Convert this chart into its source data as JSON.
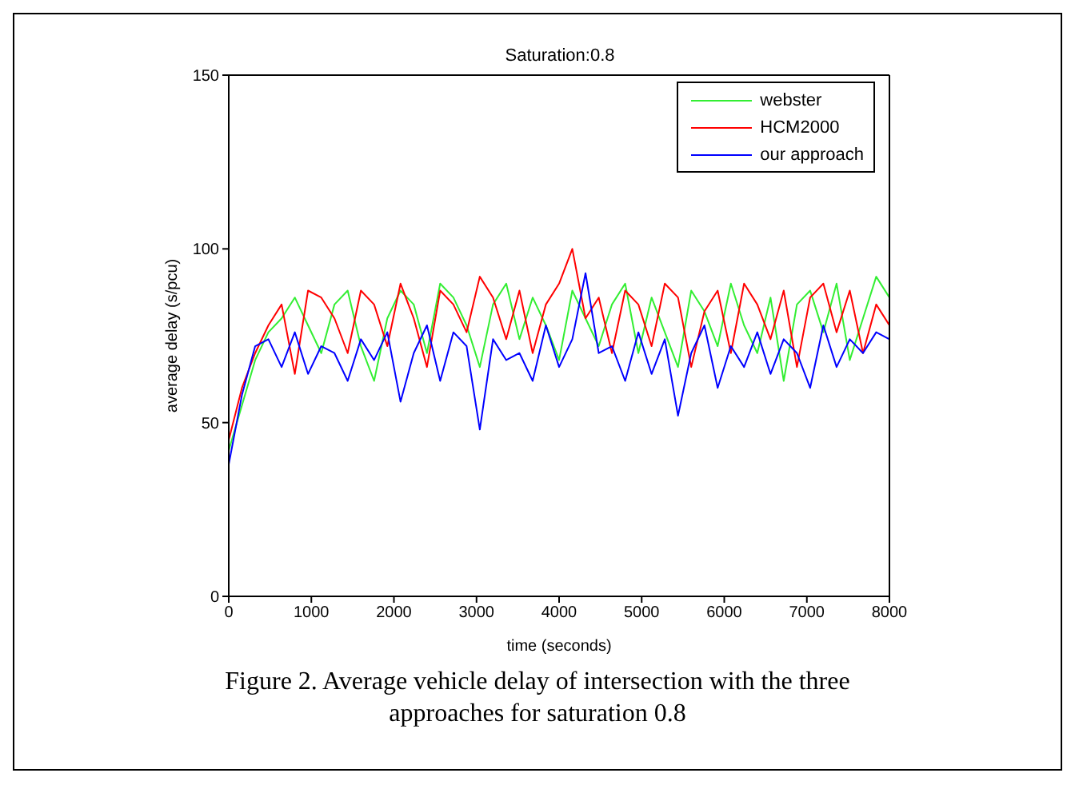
{
  "chart_data": {
    "type": "line",
    "title": "Saturation:0.8",
    "xlabel": "time (seconds)",
    "ylabel": "average delay (s/pcu)",
    "annotations": [
      "Figure 2.  Average vehicle delay of intersection with the three approaches for saturation 0.8"
    ],
    "x": [
      0,
      160,
      320,
      480,
      640,
      800,
      960,
      1120,
      1280,
      1440,
      1600,
      1760,
      1920,
      2080,
      2240,
      2400,
      2560,
      2720,
      2880,
      3040,
      3200,
      3360,
      3520,
      3680,
      3840,
      4000,
      4160,
      4320,
      4480,
      4640,
      4800,
      4960,
      5120,
      5280,
      5440,
      5600,
      5760,
      5920,
      6080,
      6240,
      6400,
      6560,
      6720,
      6880,
      7040,
      7200,
      7360,
      7520,
      7680,
      7840,
      8000
    ],
    "series": [
      {
        "name": "webster",
        "color": "#33ee33",
        "values": [
          42,
          55,
          68,
          76,
          80,
          86,
          78,
          70,
          84,
          88,
          72,
          62,
          80,
          88,
          84,
          70,
          90,
          86,
          78,
          66,
          84,
          90,
          74,
          86,
          78,
          68,
          88,
          80,
          72,
          84,
          90,
          70,
          86,
          76,
          66,
          88,
          82,
          72,
          90,
          78,
          70,
          86,
          62,
          84,
          88,
          76,
          90,
          68,
          80,
          92,
          86
        ]
      },
      {
        "name": "HCM2000",
        "color": "#ff0000",
        "values": [
          45,
          60,
          70,
          78,
          84,
          64,
          88,
          86,
          80,
          70,
          88,
          84,
          72,
          90,
          80,
          66,
          88,
          84,
          76,
          92,
          86,
          74,
          88,
          70,
          84,
          90,
          100,
          80,
          86,
          70,
          88,
          84,
          72,
          90,
          86,
          66,
          82,
          88,
          70,
          90,
          84,
          74,
          88,
          66,
          86,
          90,
          76,
          88,
          70,
          84,
          78
        ]
      },
      {
        "name": "our approach",
        "color": "#0000ff",
        "values": [
          38,
          58,
          72,
          74,
          66,
          76,
          64,
          72,
          70,
          62,
          74,
          68,
          76,
          56,
          70,
          78,
          62,
          76,
          72,
          48,
          74,
          68,
          70,
          62,
          78,
          66,
          74,
          93,
          70,
          72,
          62,
          76,
          64,
          74,
          52,
          70,
          78,
          60,
          72,
          66,
          76,
          64,
          74,
          70,
          60,
          78,
          66,
          74,
          70,
          76,
          74
        ]
      }
    ],
    "xlim": [
      0,
      8000
    ],
    "xticks": [
      0,
      1000,
      2000,
      3000,
      4000,
      5000,
      6000,
      7000,
      8000
    ],
    "ylim": [
      0,
      150
    ],
    "yticks": [
      0,
      50,
      100,
      150
    ],
    "grid": false,
    "legend": "top right",
    "marker": "none",
    "line_style": "solid"
  }
}
